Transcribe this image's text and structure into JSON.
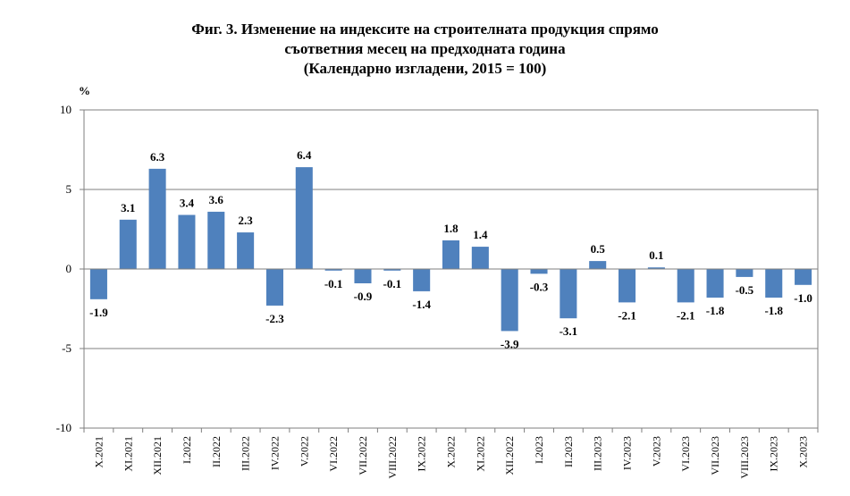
{
  "chart_data": {
    "type": "bar",
    "title": [
      "Фиг. 3. Изменение на индексите на строителната продукция спрямо",
      "съответния месец на предходната година",
      "(Календарно изгладени, 2015 = 100)"
    ],
    "ylabel": "%",
    "ylim": [
      -10,
      10
    ],
    "yticks": [
      10,
      5,
      0,
      -5,
      -10
    ],
    "grid": true,
    "bar_color": "#4f81bd",
    "categories": [
      "X.2021",
      "XI.2021",
      "XII.2021",
      "I.2022",
      "II.2022",
      "III.2022",
      "IV.2022",
      "V.2022",
      "VI.2022",
      "VII.2022",
      "VIII.2022",
      "IX.2022",
      "X.2022",
      "XI.2022",
      "XII.2022",
      "I.2023",
      "II.2023",
      "III.2023",
      "IV.2023",
      "V.2023",
      "VI.2023",
      "VII.2023",
      "VIII.2023",
      "IX.2023",
      "X.2023"
    ],
    "values": [
      -1.9,
      3.1,
      6.3,
      3.4,
      3.6,
      2.3,
      -2.3,
      6.4,
      -0.1,
      -0.9,
      -0.1,
      -1.4,
      1.8,
      1.4,
      -3.9,
      -0.3,
      -3.1,
      0.5,
      -2.1,
      0.1,
      -2.1,
      -1.8,
      -0.5,
      -1.8,
      -1.0
    ],
    "value_labels": [
      "-1.9",
      "3.1",
      "6.3",
      "3.4",
      "3.6",
      "2.3",
      "-2.3",
      "6.4",
      "-0.1",
      "-0.9",
      "-0.1",
      "-1.4",
      "1.8",
      "1.4",
      "-3.9",
      "-0.3",
      "-3.1",
      "0.5",
      "-2.1",
      "0.1",
      "-2.1",
      "-1.8",
      "-0.5",
      "-1.8",
      "-1.0"
    ]
  }
}
